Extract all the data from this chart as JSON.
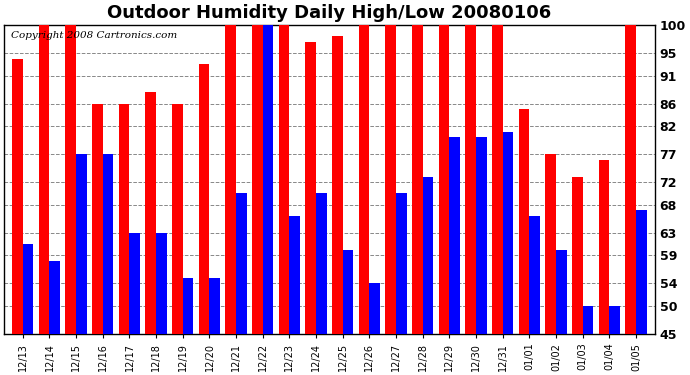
{
  "title": "Outdoor Humidity Daily High/Low 20080106",
  "copyright_text": "Copyright 2008 Cartronics.com",
  "categories": [
    "12/13",
    "12/14",
    "12/15",
    "12/16",
    "12/17",
    "12/18",
    "12/19",
    "12/20",
    "12/21",
    "12/22",
    "12/23",
    "12/24",
    "12/25",
    "12/26",
    "12/27",
    "12/28",
    "12/29",
    "12/30",
    "12/31",
    "01/01",
    "01/02",
    "01/03",
    "01/04",
    "01/05"
  ],
  "highs": [
    94,
    100,
    100,
    86,
    86,
    88,
    86,
    93,
    100,
    100,
    100,
    97,
    98,
    100,
    100,
    100,
    100,
    100,
    100,
    85,
    77,
    73,
    76,
    100
  ],
  "lows": [
    61,
    58,
    77,
    77,
    63,
    63,
    55,
    55,
    70,
    100,
    66,
    70,
    60,
    54,
    70,
    73,
    80,
    80,
    81,
    66,
    60,
    50,
    50,
    67
  ],
  "high_color": "#ff0000",
  "low_color": "#0000ff",
  "bg_color": "#ffffff",
  "plot_bg_color": "#ffffff",
  "grid_color": "#888888",
  "ylim_min": 45,
  "ylim_max": 100,
  "yticks": [
    45,
    50,
    54,
    59,
    63,
    68,
    72,
    77,
    82,
    86,
    91,
    95,
    100
  ],
  "title_fontsize": 13,
  "bar_width": 0.4,
  "copyright_fontsize": 7.5
}
